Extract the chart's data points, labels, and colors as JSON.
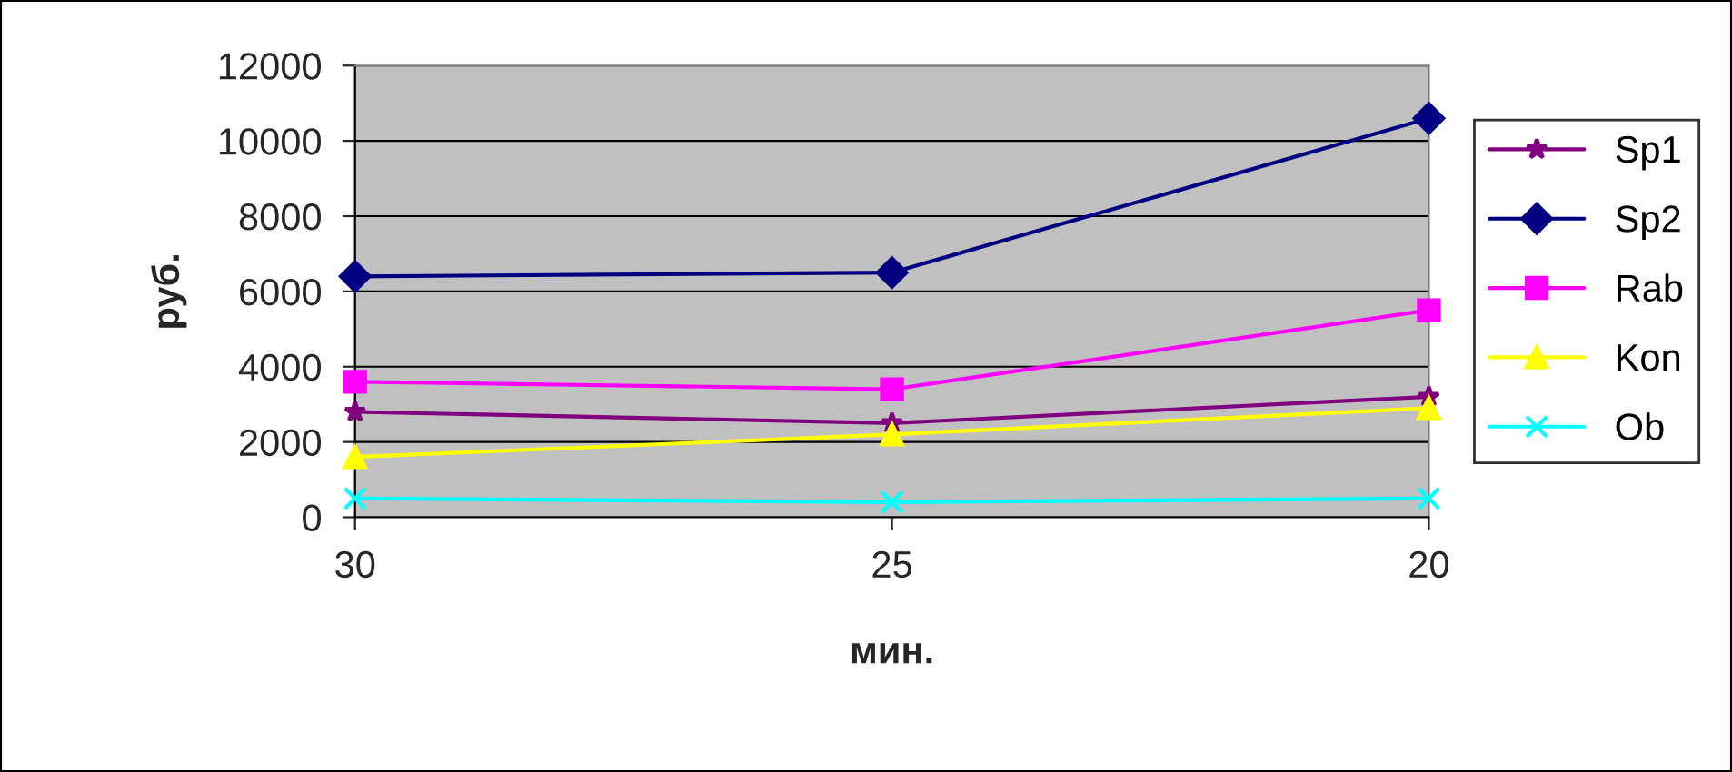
{
  "chart_data": {
    "type": "line",
    "xlabel": "мин.",
    "ylabel": "руб.",
    "categories": [
      "30",
      "25",
      "20"
    ],
    "ylim": [
      0,
      12000
    ],
    "yticks": [
      0,
      2000,
      4000,
      6000,
      8000,
      10000,
      12000
    ],
    "grid": "y",
    "legend": "right",
    "line_style": "solid",
    "series": [
      {
        "name": "Sp1",
        "color": "#800080",
        "marker": "star",
        "values": [
          2800,
          2500,
          3200
        ]
      },
      {
        "name": "Sp2",
        "color": "#000080",
        "marker": "diamond",
        "values": [
          6400,
          6500,
          10600
        ]
      },
      {
        "name": "Rab",
        "color": "#ff00ff",
        "marker": "square",
        "values": [
          3600,
          3400,
          5500
        ]
      },
      {
        "name": "Kon",
        "color": "#ffff00",
        "marker": "triangle",
        "values": [
          1600,
          2200,
          2900
        ]
      },
      {
        "name": "Ob",
        "color": "#00ffff",
        "marker": "cross",
        "values": [
          500,
          400,
          500
        ]
      }
    ]
  }
}
